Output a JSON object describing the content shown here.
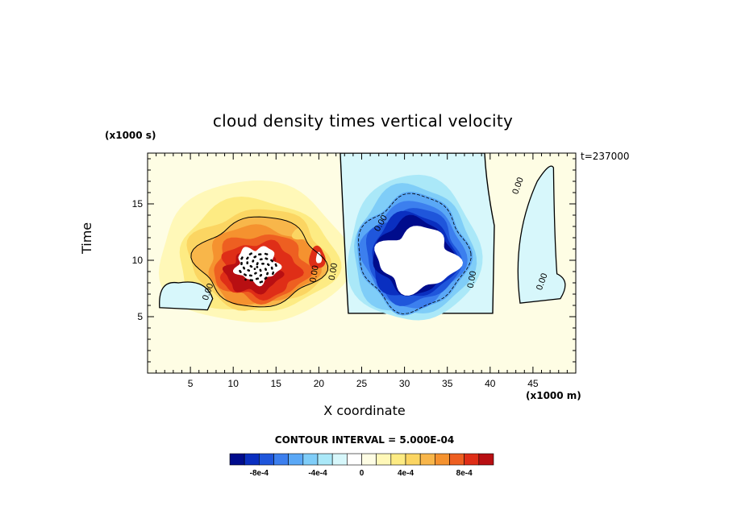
{
  "chart_data": {
    "type": "heatmap",
    "title": "cloud density times vertical velocity",
    "xlabel": "X coordinate",
    "ylabel": "Time",
    "x_unit": "(x1000 m)",
    "y_unit": "(x1000 s)",
    "time_stamp": "t=237000",
    "contour_interval_label": "CONTOUR INTERVAL = 5.000E-04",
    "xlim": [
      0,
      50
    ],
    "ylim": [
      0,
      19.5
    ],
    "x_ticks": [
      5,
      10,
      15,
      20,
      25,
      30,
      35,
      40,
      45
    ],
    "y_ticks": [
      5,
      10,
      15
    ],
    "x_tick_labels": [
      "5",
      "10",
      "15",
      "20",
      "25",
      "30",
      "35",
      "40",
      "45"
    ],
    "y_tick_labels": [
      "5",
      "10",
      "15"
    ],
    "contour_labels": [
      "0.00",
      "0.00",
      "0.00",
      "0.00",
      "0.00",
      "0.00",
      "0.00"
    ],
    "colorbar": {
      "colors": [
        "#000c8c",
        "#0a2fc0",
        "#1f56db",
        "#3c7fee",
        "#5aa8f6",
        "#7fcdf8",
        "#aae8f8",
        "#d7f7fb",
        "#ffffff",
        "#fefde4",
        "#fff8b8",
        "#fdeb83",
        "#fbd562",
        "#f8b64a",
        "#f5922f",
        "#ee5f21",
        "#df2e17",
        "#b80f12"
      ],
      "tick_labels": [
        "-8e-4",
        "-4e-4",
        "0",
        "4e-4",
        "8e-4"
      ]
    },
    "features": [
      {
        "sign": "positive",
        "x_center": 12.5,
        "y_center": 10,
        "peak_value": 0.0009
      },
      {
        "sign": "negative",
        "x_center": 31,
        "y_center": 11.5,
        "peak_value": -0.0009
      },
      {
        "sign": "negative",
        "x_center": 46,
        "y_center": 12,
        "peak_value": -0.0001
      }
    ]
  }
}
